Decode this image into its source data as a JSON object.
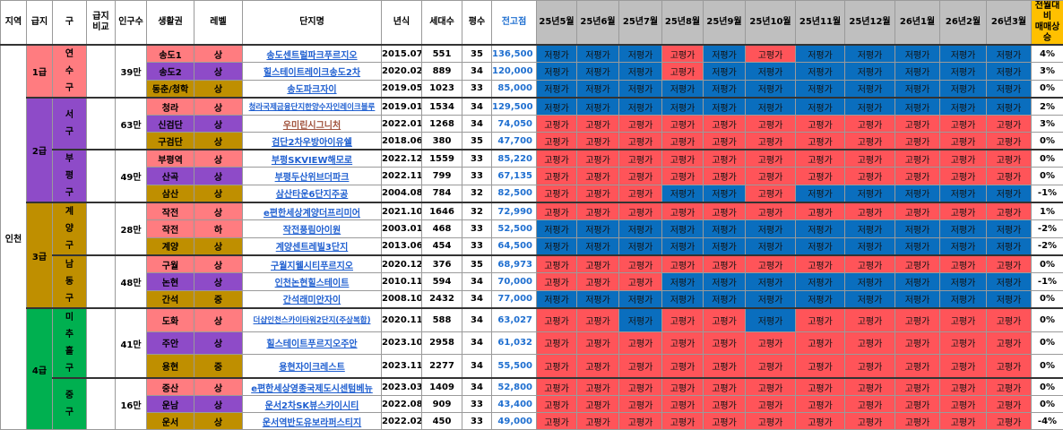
{
  "colors": {
    "area_red": "#ff7c80",
    "area_purple": "#8e4bc8",
    "area_gold": "#bf8f00",
    "grade_green": "#00b050",
    "high": "#ff5459",
    "low": "#0a6ebe",
    "header_gray": "#bfbfbf",
    "header_yellow": "#ffc000"
  },
  "headers": {
    "region": "지역",
    "grade": "급지",
    "district": "구",
    "compare": "급지\n비교",
    "population": "인구수",
    "area": "생활권",
    "level": "레벨",
    "complex": "단지명",
    "year": "년식",
    "units": "세대수",
    "size": "평수",
    "peak": "전고점",
    "change": "전월대비\n매매상승"
  },
  "months": [
    "25년5월",
    "25년6월",
    "25년7월",
    "25년8월",
    "25년9월",
    "25년10월",
    "25년11월",
    "25년12월",
    "26년1월",
    "26년2월",
    "26년3월"
  ],
  "labels": {
    "high": "고평가",
    "low": "저평가"
  },
  "region": "인천",
  "grades": [
    {
      "grade": "1급",
      "color": "#ff7c80",
      "districts": [
        {
          "name": "연수구",
          "color": "#ff7c80",
          "compare": "",
          "population": "39만",
          "rows": [
            {
              "area": "송도1",
              "area_color": "#ff7c80",
              "level": "상",
              "complex": "송도센트럴파크푸르지오",
              "year": "2015.07",
              "units": "551",
              "size": "35",
              "peak": "136,500",
              "months": [
                "저",
                "저",
                "저",
                "고",
                "저",
                "고",
                "저",
                "저",
                "저",
                "저",
                "저"
              ],
              "change": "4%"
            },
            {
              "area": "송도2",
              "area_color": "#8e4bc8",
              "level": "상",
              "complex": "힐스테이트레이크송도2차",
              "year": "2020.02",
              "units": "889",
              "size": "34",
              "peak": "120,000",
              "months": [
                "저",
                "저",
                "저",
                "고",
                "저",
                "저",
                "저",
                "저",
                "저",
                "저",
                "저"
              ],
              "change": "3%"
            },
            {
              "area": "동춘/청학",
              "area_color": "#bf8f00",
              "level": "상",
              "complex": "송도파크자이",
              "year": "2019.05",
              "units": "1023",
              "size": "33",
              "peak": "85,000",
              "months": [
                "저",
                "저",
                "저",
                "저",
                "저",
                "저",
                "저",
                "저",
                "저",
                "저",
                "저"
              ],
              "change": "0%"
            }
          ]
        }
      ]
    },
    {
      "grade": "2급",
      "color": "#8e4bc8",
      "districts": [
        {
          "name": "서구",
          "color": "#8e4bc8",
          "compare": "",
          "population": "63만",
          "rows": [
            {
              "area": "청라",
              "area_color": "#ff7c80",
              "level": "상",
              "complex": "청라국제금융단지한양수자인레이크블루",
              "year": "2019.01",
              "units": "1534",
              "size": "34",
              "peak": "129,500",
              "months": [
                "저",
                "저",
                "저",
                "저",
                "저",
                "저",
                "저",
                "저",
                "저",
                "저",
                "저"
              ],
              "change": "2%"
            },
            {
              "area": "신검단",
              "area_color": "#8e4bc8",
              "level": "상",
              "complex": "우미린시그니처",
              "visited": true,
              "year": "2022.01",
              "units": "1268",
              "size": "34",
              "peak": "74,050",
              "months": [
                "고",
                "고",
                "고",
                "고",
                "고",
                "고",
                "고",
                "고",
                "고",
                "고",
                "고"
              ],
              "change": "3%"
            },
            {
              "area": "구검단",
              "area_color": "#bf8f00",
              "level": "상",
              "complex": "검단2차우방아이유쉘",
              "year": "2018.06",
              "units": "380",
              "size": "35",
              "peak": "47,700",
              "months": [
                "고",
                "고",
                "고",
                "고",
                "고",
                "고",
                "고",
                "고",
                "고",
                "고",
                "고"
              ],
              "change": "0%"
            }
          ]
        },
        {
          "name": "부평구",
          "color": "#8e4bc8",
          "compare": "",
          "population": "49만",
          "rows": [
            {
              "area": "부평역",
              "area_color": "#ff7c80",
              "level": "상",
              "complex": "부평SKVIEW해모로",
              "year": "2022.12",
              "units": "1559",
              "size": "33",
              "peak": "85,220",
              "months": [
                "고",
                "고",
                "고",
                "고",
                "고",
                "고",
                "고",
                "고",
                "고",
                "고",
                "고"
              ],
              "change": "0%"
            },
            {
              "area": "산곡",
              "area_color": "#8e4bc8",
              "level": "상",
              "complex": "부평두산위브더파크",
              "year": "2022.11",
              "units": "799",
              "size": "33",
              "peak": "67,135",
              "months": [
                "고",
                "고",
                "고",
                "고",
                "고",
                "고",
                "고",
                "고",
                "고",
                "고",
                "고"
              ],
              "change": "0%"
            },
            {
              "area": "삼산",
              "area_color": "#bf8f00",
              "level": "상",
              "complex": "삼산타운6단지주공",
              "year": "2004.08",
              "units": "784",
              "size": "32",
              "peak": "82,500",
              "months": [
                "고",
                "고",
                "고",
                "저",
                "저",
                "고",
                "저",
                "저",
                "저",
                "저",
                "저"
              ],
              "change": "-1%"
            }
          ]
        }
      ]
    },
    {
      "grade": "3급",
      "color": "#bf8f00",
      "districts": [
        {
          "name": "계양구",
          "color": "#bf8f00",
          "compare": "",
          "population": "28만",
          "rows": [
            {
              "area": "작전",
              "area_color": "#ff7c80",
              "level": "상",
              "complex": "e편한세상계양더프리미어",
              "year": "2021.10",
              "units": "1646",
              "size": "32",
              "peak": "72,990",
              "months": [
                "고",
                "고",
                "고",
                "고",
                "고",
                "고",
                "고",
                "고",
                "고",
                "고",
                "고"
              ],
              "change": "1%"
            },
            {
              "area": "작전",
              "area_color": "#ff7c80",
              "level": "하",
              "complex": "작전풍림아이원",
              "year": "2003.01",
              "units": "468",
              "size": "33",
              "peak": "52,500",
              "months": [
                "저",
                "저",
                "저",
                "저",
                "저",
                "저",
                "저",
                "저",
                "저",
                "저",
                "저"
              ],
              "change": "-2%"
            },
            {
              "area": "계양",
              "area_color": "#bf8f00",
              "level": "상",
              "complex": "계양센트레빌3단지",
              "year": "2013.06",
              "units": "454",
              "size": "33",
              "peak": "64,500",
              "months": [
                "저",
                "저",
                "저",
                "저",
                "저",
                "저",
                "저",
                "저",
                "저",
                "저",
                "저"
              ],
              "change": "-2%"
            }
          ]
        },
        {
          "name": "남동구",
          "color": "#bf8f00",
          "compare": "",
          "population": "48만",
          "rows": [
            {
              "area": "구월",
              "area_color": "#ff7c80",
              "level": "상",
              "complex": "구월지웰시티푸르지오",
              "year": "2020.12",
              "units": "376",
              "size": "35",
              "peak": "68,973",
              "months": [
                "고",
                "고",
                "고",
                "고",
                "고",
                "고",
                "고",
                "고",
                "고",
                "고",
                "고"
              ],
              "change": "0%"
            },
            {
              "area": "논현",
              "area_color": "#8e4bc8",
              "level": "상",
              "complex": "인천논현힐스테이트",
              "year": "2010.11",
              "units": "594",
              "size": "34",
              "peak": "70,000",
              "months": [
                "고",
                "고",
                "고",
                "저",
                "저",
                "저",
                "저",
                "저",
                "저",
                "저",
                "저"
              ],
              "change": "-1%"
            },
            {
              "area": "간석",
              "area_color": "#bf8f00",
              "level": "중",
              "complex": "간석래미안자이",
              "year": "2008.10",
              "units": "2432",
              "size": "34",
              "peak": "77,000",
              "months": [
                "저",
                "저",
                "저",
                "저",
                "저",
                "저",
                "저",
                "저",
                "저",
                "저",
                "저"
              ],
              "change": "0%"
            }
          ]
        }
      ]
    },
    {
      "grade": "4급",
      "color": "#00b050",
      "districts": [
        {
          "name": "미추홀구",
          "color": "#00b050",
          "compare": "",
          "population": "41만",
          "rows": [
            {
              "area": "도화",
              "area_color": "#ff7c80",
              "level": "상",
              "complex": "더샵인천스카이타워2단지(주상복합)",
              "year": "2020.11",
              "units": "588",
              "size": "34",
              "peak": "63,027",
              "months": [
                "고",
                "고",
                "저",
                "고",
                "고",
                "저",
                "고",
                "고",
                "고",
                "고",
                "고"
              ],
              "change": "0%"
            },
            {
              "area": "주안",
              "area_color": "#8e4bc8",
              "level": "상",
              "complex": "힐스테이트푸르지오주안",
              "year": "2023.10",
              "units": "2958",
              "size": "34",
              "peak": "61,032",
              "months": [
                "고",
                "고",
                "고",
                "고",
                "고",
                "고",
                "고",
                "고",
                "고",
                "고",
                "고"
              ],
              "change": "0%"
            },
            {
              "area": "용현",
              "area_color": "#bf8f00",
              "level": "중",
              "complex": "용현자이크레스트",
              "year": "2023.11",
              "units": "2277",
              "size": "34",
              "peak": "55,500",
              "months": [
                "고",
                "고",
                "고",
                "고",
                "고",
                "고",
                "고",
                "고",
                "고",
                "고",
                "고"
              ],
              "change": "0%"
            }
          ]
        },
        {
          "name": "중구",
          "color": "#00b050",
          "compare": "",
          "population": "16만",
          "rows": [
            {
              "area": "중산",
              "area_color": "#ff7c80",
              "level": "상",
              "complex": "e편한세상영종국제도시센텀베뉴",
              "year": "2023.03",
              "units": "1409",
              "size": "34",
              "peak": "52,800",
              "months": [
                "고",
                "고",
                "고",
                "고",
                "고",
                "고",
                "고",
                "고",
                "고",
                "고",
                "고"
              ],
              "change": "0%"
            },
            {
              "area": "운남",
              "area_color": "#8e4bc8",
              "level": "상",
              "complex": "운서2차SK뷰스카이시티",
              "year": "2022.08",
              "units": "909",
              "size": "33",
              "peak": "43,400",
              "months": [
                "고",
                "고",
                "고",
                "고",
                "고",
                "고",
                "고",
                "고",
                "고",
                "고",
                "고"
              ],
              "change": "0%"
            },
            {
              "area": "운서",
              "area_color": "#bf8f00",
              "level": "상",
              "complex": "운서역반도유보라퍼스티지",
              "year": "2022.02",
              "units": "450",
              "size": "33",
              "peak": "49,000",
              "months": [
                "고",
                "고",
                "고",
                "고",
                "고",
                "고",
                "고",
                "고",
                "고",
                "고",
                "고"
              ],
              "change": "-4%"
            }
          ]
        }
      ]
    }
  ]
}
